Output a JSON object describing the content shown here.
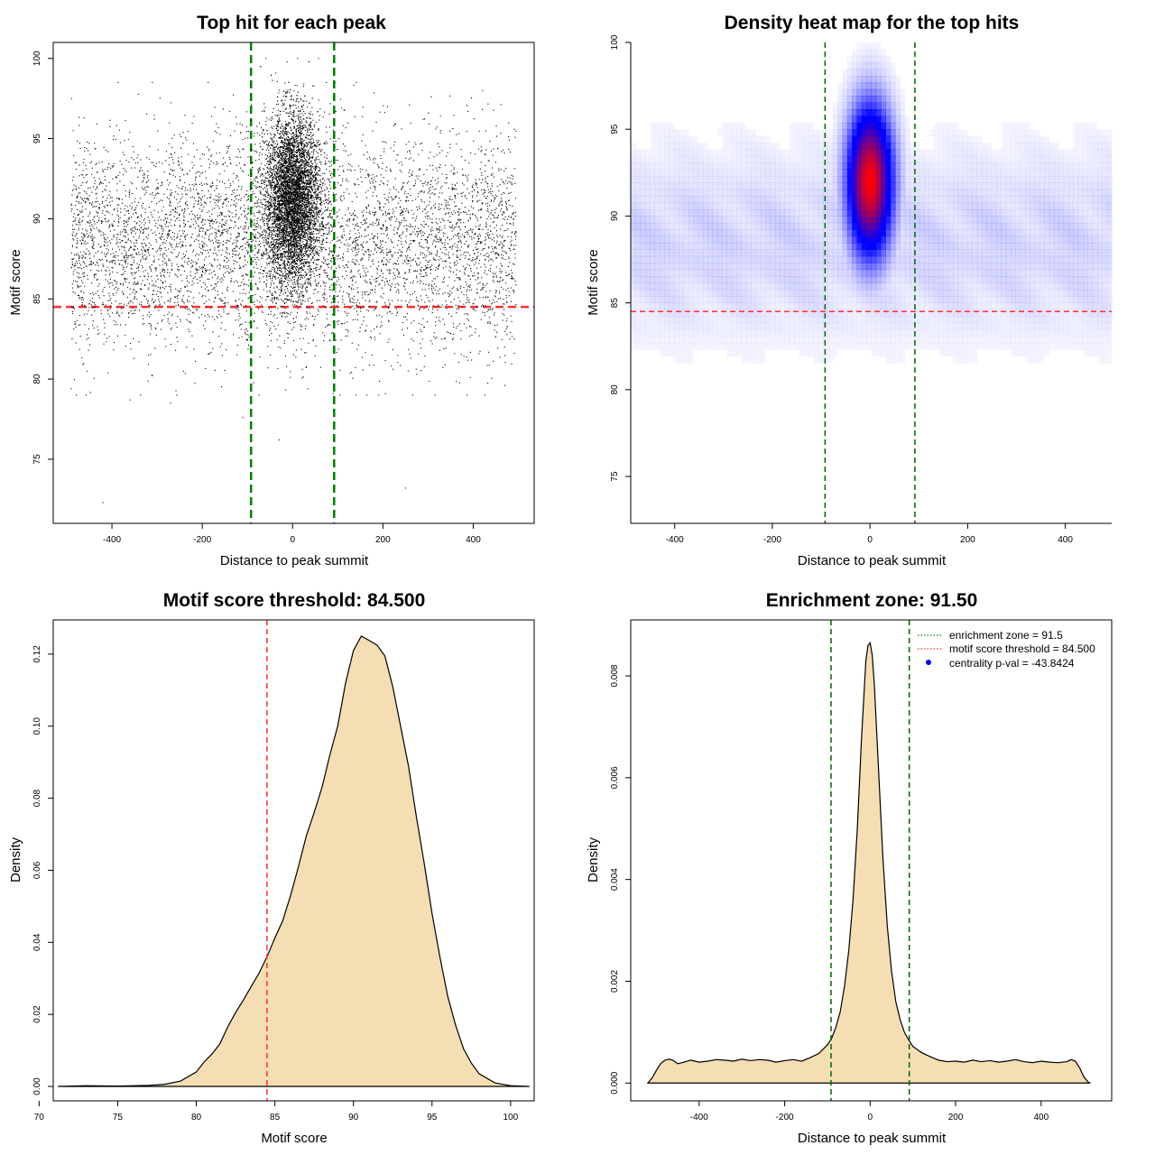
{
  "chart_data": [
    {
      "type": "scatter",
      "title": "Top hit for each peak",
      "xlabel": "Distance to peak summit",
      "ylabel": "Motif score",
      "xlim": [
        -530,
        535
      ],
      "ylim": [
        71,
        101
      ],
      "x_ticks": [
        -400,
        -200,
        0,
        200,
        400
      ],
      "y_ticks": [
        75,
        80,
        85,
        90,
        95,
        100
      ],
      "series": [
        {
          "points": {
            "n_background": 6000,
            "bg_x_range": [
              -490,
              495
            ],
            "bg_y_mean": 88.5,
            "bg_y_sd": 3.3,
            "n_central": 6500,
            "central_x_sd": 30,
            "central_y_mean": 91.2,
            "central_y_sd": 2.6,
            "outliers": [
              [
                -420,
                72.3
              ],
              [
                250,
                73.2
              ],
              [
                -30,
                76.2
              ],
              [
                -110,
                77.6
              ],
              [
                -360,
                78.7
              ],
              [
                -270,
                78.5
              ],
              [
                470,
                79.6
              ],
              [
                -490,
                79.4
              ]
            ]
          }
        }
      ],
      "reference_lines": {
        "vertical_x": [
          -92,
          92
        ],
        "vertical_color": "#008000",
        "horizontal_y": 84.5,
        "horizontal_color": "#ff3030"
      }
    },
    {
      "type": "heatmap",
      "title": "Density heat map for the top hits",
      "xlabel": "Distance to peak summit",
      "ylabel": "Motif score",
      "xlim": [
        -490,
        495
      ],
      "ylim": [
        72.3,
        100
      ],
      "x_ticks": [
        -400,
        -200,
        0,
        200,
        400
      ],
      "y_ticks": [
        75,
        80,
        85,
        90,
        95,
        100
      ],
      "density": {
        "peak_x": 0,
        "peak_y": 92.0,
        "x_sd": 30,
        "y_sd": 2.8,
        "background_y_range": [
          81,
          96
        ]
      },
      "colors": {
        "low": "#ffffff",
        "mid": "#0000ff",
        "high": "#ff0000"
      },
      "reference_lines": {
        "vertical_x": [
          -92,
          92
        ],
        "vertical_color": "#006400",
        "horizontal_y": 84.5,
        "horizontal_color": "#ff3030"
      }
    },
    {
      "type": "area",
      "title": "Motif score threshold: 84.500",
      "xlabel": "Motif score",
      "ylabel": "Density",
      "xlim": [
        70.9,
        101.5
      ],
      "ylim": [
        -0.004,
        0.1295
      ],
      "x_ticks": [
        70,
        75,
        80,
        85,
        90,
        95,
        100
      ],
      "y_ticks": [
        0.0,
        0.02,
        0.04,
        0.06,
        0.08,
        0.1,
        0.12
      ],
      "y_tick_labels": [
        "0.00",
        "0.02",
        "0.04",
        "0.06",
        "0.08",
        "0.10",
        "0.12"
      ],
      "x": [
        71.2,
        73,
        75,
        77,
        78,
        79,
        80,
        80.5,
        81,
        81.5,
        82,
        82.5,
        83,
        83.5,
        84,
        84.5,
        85,
        85.5,
        86,
        86.5,
        87,
        87.5,
        88,
        88.5,
        89,
        89.5,
        90,
        90.5,
        91,
        91.5,
        92,
        92.5,
        93,
        93.5,
        94,
        94.5,
        95,
        95.5,
        96,
        96.5,
        97,
        97.5,
        98,
        99,
        100,
        101.2
      ],
      "y": [
        0.0,
        0.0002,
        0.0001,
        0.0003,
        0.0006,
        0.0015,
        0.004,
        0.0068,
        0.009,
        0.0118,
        0.0165,
        0.0205,
        0.024,
        0.0278,
        0.0315,
        0.036,
        0.0412,
        0.046,
        0.053,
        0.061,
        0.0695,
        0.076,
        0.083,
        0.092,
        0.1,
        0.112,
        0.121,
        0.125,
        0.1238,
        0.1225,
        0.1195,
        0.111,
        0.1,
        0.089,
        0.075,
        0.062,
        0.048,
        0.036,
        0.025,
        0.017,
        0.0105,
        0.0065,
        0.0035,
        0.001,
        0.0002,
        0.0
      ],
      "fill": "#f5deb3",
      "reference_lines": {
        "vertical_x": [
          84.5
        ],
        "vertical_color": "#ff3030"
      }
    },
    {
      "type": "area",
      "title": "Enrichment zone: 91.50",
      "xlabel": "Distance to peak summit",
      "ylabel": "Density",
      "xlim": [
        -560,
        565
      ],
      "ylim": [
        -0.00035,
        0.0091
      ],
      "x_ticks": [
        -400,
        -200,
        0,
        200,
        400
      ],
      "y_ticks": [
        0.0,
        0.002,
        0.004,
        0.006,
        0.008
      ],
      "y_tick_labels": [
        "0.000",
        "0.002",
        "0.004",
        "0.006",
        "0.008"
      ],
      "x": [
        -520,
        -510,
        -500,
        -490,
        -480,
        -470,
        -460,
        -450,
        -440,
        -420,
        -400,
        -380,
        -360,
        -340,
        -320,
        -300,
        -280,
        -260,
        -240,
        -220,
        -200,
        -180,
        -160,
        -140,
        -120,
        -100,
        -90,
        -80,
        -70,
        -60,
        -50,
        -40,
        -30,
        -20,
        -10,
        -5,
        0,
        5,
        10,
        20,
        30,
        40,
        50,
        60,
        70,
        80,
        90,
        100,
        120,
        140,
        160,
        180,
        200,
        220,
        240,
        260,
        280,
        300,
        320,
        340,
        360,
        380,
        400,
        420,
        440,
        460,
        470,
        480,
        490,
        500,
        510,
        515
      ],
      "y": [
        0.0,
        0.0001,
        0.00025,
        0.00038,
        0.00045,
        0.00047,
        0.00044,
        0.00038,
        0.0004,
        0.00045,
        0.00041,
        0.00043,
        0.00046,
        0.00045,
        0.00043,
        0.00047,
        0.00044,
        0.00046,
        0.00045,
        0.00041,
        0.00044,
        0.00046,
        0.00043,
        0.0005,
        0.00058,
        0.00075,
        0.00088,
        0.0011,
        0.0014,
        0.0019,
        0.0026,
        0.0036,
        0.005,
        0.0068,
        0.0083,
        0.0086,
        0.00865,
        0.0084,
        0.0078,
        0.0061,
        0.0044,
        0.0031,
        0.0022,
        0.0016,
        0.00125,
        0.001,
        0.00085,
        0.00072,
        0.0006,
        0.00052,
        0.00045,
        0.00042,
        0.00043,
        0.00041,
        0.00045,
        0.00042,
        0.00044,
        0.00041,
        0.00043,
        0.00046,
        0.00042,
        0.0004,
        0.00043,
        0.00041,
        0.0004,
        0.00042,
        0.00046,
        0.00043,
        0.0003,
        0.00012,
        2e-05,
        0.0
      ],
      "fill": "#f5deb3",
      "reference_lines": {
        "vertical_x": [
          -91.5,
          91.5
        ],
        "vertical_color": "#006400"
      },
      "legend": {
        "placement": "top-right",
        "items": [
          {
            "label": "enrichment zone = 91.5",
            "color": "#008000",
            "style": "dotted"
          },
          {
            "label": "motif score threshold = 84.500",
            "color": "#ff3030",
            "style": "dotted"
          },
          {
            "label": "centrality p-val = -43.8424",
            "color": "#0000ff",
            "style": "point"
          }
        ]
      }
    }
  ]
}
